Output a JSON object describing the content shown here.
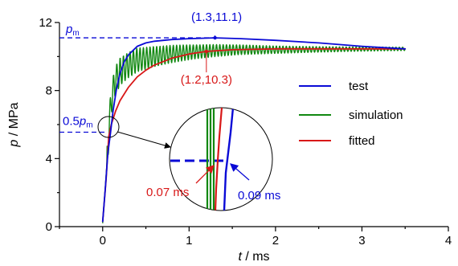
{
  "chart_data": {
    "type": "line",
    "xlabel": {
      "var": "t",
      "unit": " / ms"
    },
    "ylabel": {
      "var": "p",
      "unit": " / MPa"
    },
    "xlim": [
      -0.5,
      4
    ],
    "ylim": [
      0,
      12
    ],
    "xticks": [
      "0",
      "1",
      "2",
      "3",
      "4"
    ],
    "yticks": [
      "0",
      "4",
      "8",
      "12"
    ],
    "legend_position": "center-right",
    "grid": false,
    "series": [
      {
        "name": "test",
        "color": "#0a0ad6",
        "x": [
          0,
          0.03,
          0.06,
          0.09,
          0.12,
          0.16,
          0.2,
          0.25,
          0.3,
          0.4,
          0.5,
          0.6,
          0.8,
          1.0,
          1.3,
          1.6,
          2.0,
          2.5,
          3.0,
          3.5
        ],
        "y": [
          0.3,
          2.2,
          4.3,
          5.5,
          6.8,
          8.1,
          9.0,
          9.7,
          10.1,
          10.6,
          10.8,
          10.9,
          11.0,
          11.05,
          11.1,
          11.05,
          10.95,
          10.8,
          10.6,
          10.45
        ]
      },
      {
        "name": "simulation",
        "color": "#118811",
        "x": [
          0,
          0.04,
          0.07,
          0.1,
          0.15,
          0.2,
          0.3,
          0.4,
          0.6,
          0.8,
          1.0,
          1.3,
          1.6,
          2.0,
          2.5,
          3.0,
          3.5
        ],
        "y": [
          0.2,
          3.0,
          5.5,
          7.5,
          8.6,
          9.1,
          9.5,
          9.8,
          10.0,
          10.15,
          10.25,
          10.35,
          10.4,
          10.4,
          10.42,
          10.44,
          10.45
        ]
      },
      {
        "name": "fitted",
        "color": "#d81818",
        "x": [
          0,
          0.04,
          0.07,
          0.1,
          0.15,
          0.2,
          0.3,
          0.4,
          0.5,
          0.6,
          0.8,
          1.0,
          1.2,
          1.5,
          2.0,
          2.5,
          3.0,
          3.5
        ],
        "y": [
          0.3,
          2.8,
          5.3,
          6.0,
          6.8,
          7.4,
          8.2,
          8.8,
          9.2,
          9.5,
          9.9,
          10.15,
          10.3,
          10.4,
          10.45,
          10.45,
          10.45,
          10.45
        ]
      }
    ],
    "reference_lines": [
      {
        "label_var": "p",
        "label_sub": "m",
        "y": 11.1,
        "color": "#0a0ad6"
      },
      {
        "label_prefix": "0.5",
        "label_var": "p",
        "label_sub": "m",
        "y": 5.55,
        "color": "#0a0ad6"
      }
    ],
    "annotations": [
      {
        "text": "(1.3,11.1)",
        "x": 1.3,
        "y": 11.1,
        "color": "#0a0ad6"
      },
      {
        "text": "(1.2,10.3)",
        "x": 1.2,
        "y": 10.3,
        "color": "#d81818"
      }
    ],
    "inset": {
      "labels": [
        {
          "text": "0.07 ms",
          "color": "#d81818"
        },
        {
          "text": "0.09 ms",
          "color": "#0a0ad6"
        }
      ]
    }
  }
}
